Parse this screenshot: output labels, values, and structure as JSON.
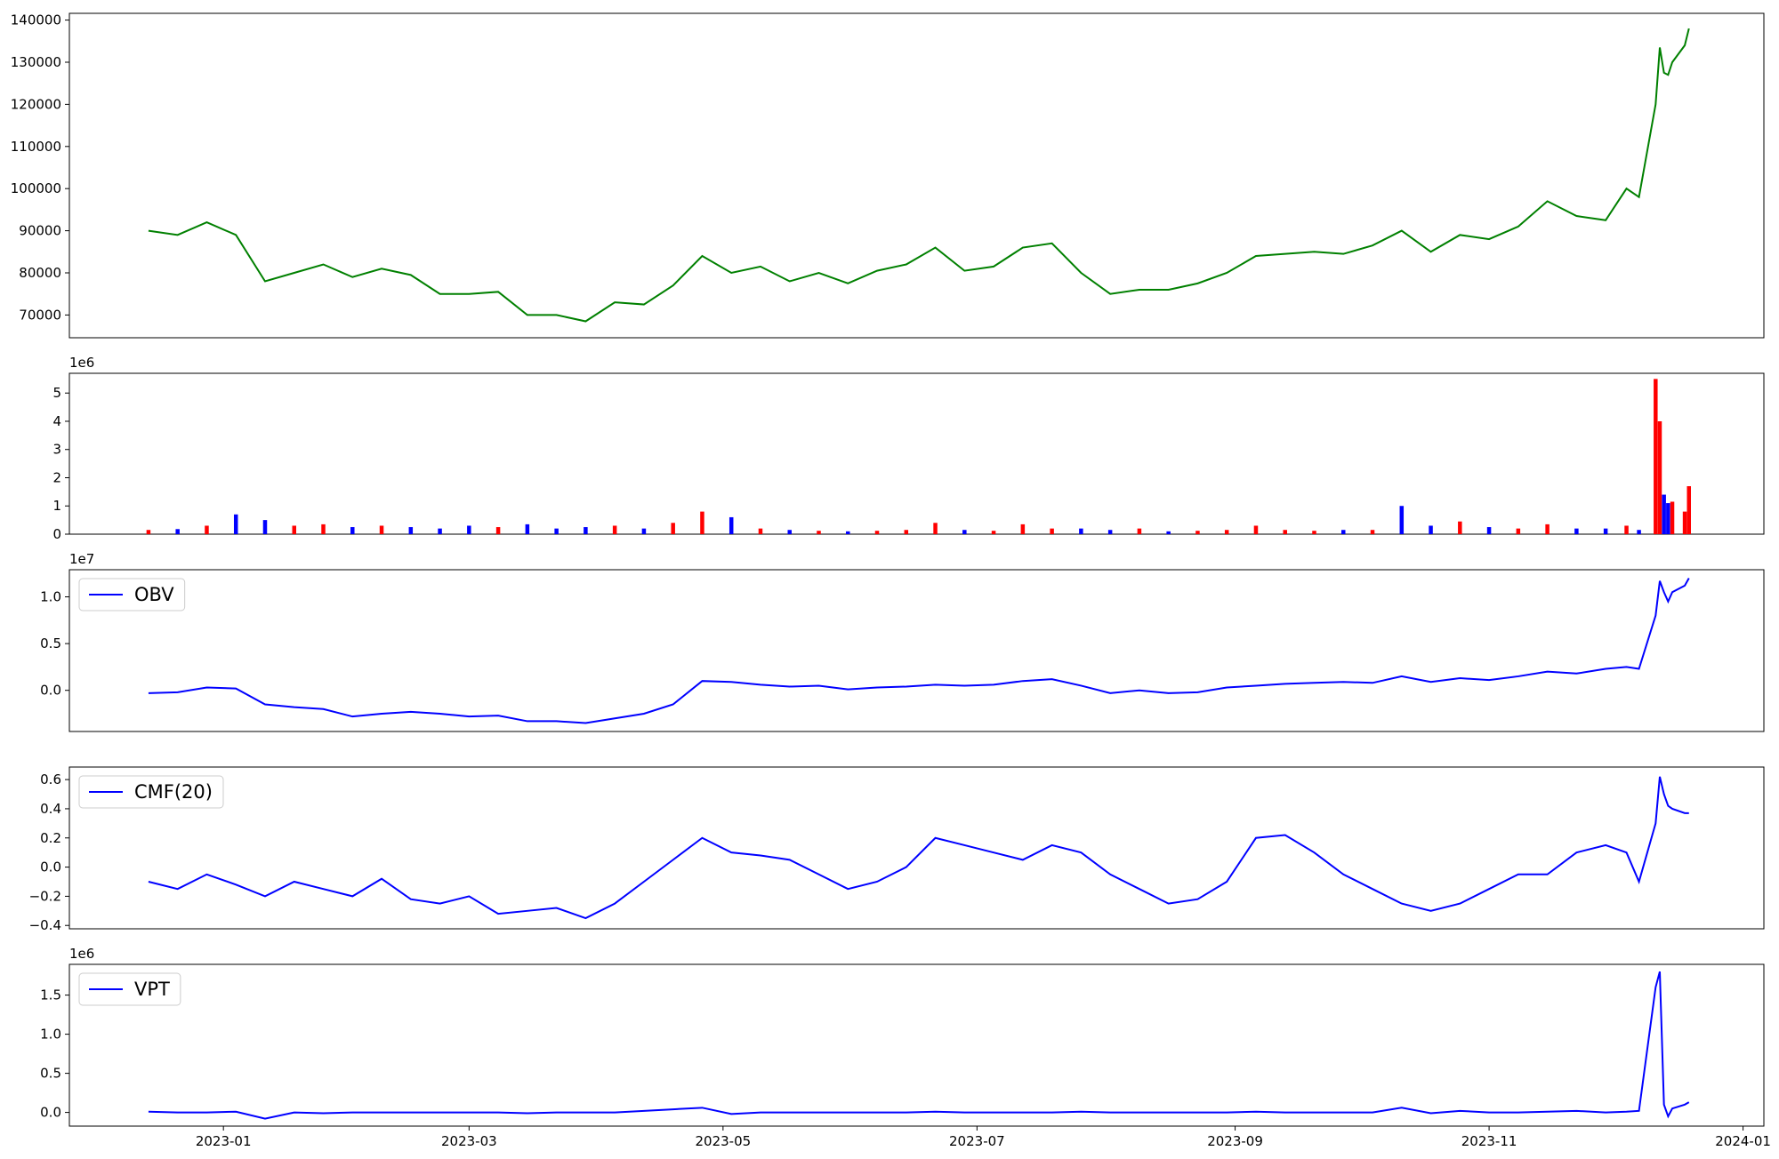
{
  "chart_data": [
    {
      "type": "line",
      "x": [
        "2022-12-14",
        "2022-12-21",
        "2022-12-28",
        "2023-01-04",
        "2023-01-11",
        "2023-01-18",
        "2023-01-25",
        "2023-02-01",
        "2023-02-08",
        "2023-02-15",
        "2023-02-22",
        "2023-03-01",
        "2023-03-08",
        "2023-03-15",
        "2023-03-22",
        "2023-03-29",
        "2023-04-05",
        "2023-04-12",
        "2023-04-19",
        "2023-04-26",
        "2023-05-03",
        "2023-05-10",
        "2023-05-17",
        "2023-05-24",
        "2023-05-31",
        "2023-06-07",
        "2023-06-14",
        "2023-06-21",
        "2023-06-28",
        "2023-07-05",
        "2023-07-12",
        "2023-07-19",
        "2023-07-26",
        "2023-08-02",
        "2023-08-09",
        "2023-08-16",
        "2023-08-23",
        "2023-08-30",
        "2023-09-06",
        "2023-09-13",
        "2023-09-20",
        "2023-09-27",
        "2023-10-04",
        "2023-10-11",
        "2023-10-18",
        "2023-10-25",
        "2023-11-01",
        "2023-11-08",
        "2023-11-15",
        "2023-11-22",
        "2023-11-29",
        "2023-12-04",
        "2023-12-07",
        "2023-12-11",
        "2023-12-12",
        "2023-12-13",
        "2023-12-14",
        "2023-12-15",
        "2023-12-18",
        "2023-12-19"
      ],
      "series": [
        {
          "color": "#008000",
          "values": [
            90000,
            89000,
            92000,
            89000,
            78000,
            80000,
            82000,
            79000,
            81000,
            79500,
            75000,
            75000,
            75500,
            70000,
            70000,
            68500,
            73000,
            72500,
            77000,
            84000,
            80000,
            81500,
            78000,
            80000,
            77500,
            80500,
            82000,
            86000,
            80500,
            81500,
            86000,
            87000,
            80000,
            75000,
            76000,
            76000,
            77500,
            80000,
            84000,
            84500,
            85000,
            84500,
            86500,
            90000,
            85000,
            89000,
            88000,
            91000,
            97000,
            93500,
            92500,
            100000,
            98000,
            120000,
            133500,
            127500,
            127000,
            130000,
            134000,
            138000
          ]
        }
      ],
      "xlim": [
        "2022-11-25",
        "2024-01-06"
      ],
      "ylim": [
        64600,
        141600
      ],
      "yticks": [
        70000,
        80000,
        90000,
        100000,
        110000,
        120000,
        130000,
        140000
      ]
    },
    {
      "type": "bar",
      "x": [
        "2022-12-14",
        "2022-12-21",
        "2022-12-28",
        "2023-01-04",
        "2023-01-11",
        "2023-01-18",
        "2023-01-25",
        "2023-02-01",
        "2023-02-08",
        "2023-02-15",
        "2023-02-22",
        "2023-03-01",
        "2023-03-08",
        "2023-03-15",
        "2023-03-22",
        "2023-03-29",
        "2023-04-05",
        "2023-04-12",
        "2023-04-19",
        "2023-04-26",
        "2023-05-03",
        "2023-05-10",
        "2023-05-17",
        "2023-05-24",
        "2023-05-31",
        "2023-06-07",
        "2023-06-14",
        "2023-06-21",
        "2023-06-28",
        "2023-07-05",
        "2023-07-12",
        "2023-07-19",
        "2023-07-26",
        "2023-08-02",
        "2023-08-09",
        "2023-08-16",
        "2023-08-23",
        "2023-08-30",
        "2023-09-06",
        "2023-09-13",
        "2023-09-20",
        "2023-09-27",
        "2023-10-04",
        "2023-10-11",
        "2023-10-18",
        "2023-10-25",
        "2023-11-01",
        "2023-11-08",
        "2023-11-15",
        "2023-11-22",
        "2023-11-29",
        "2023-12-04",
        "2023-12-07",
        "2023-12-11",
        "2023-12-12",
        "2023-12-13",
        "2023-12-14",
        "2023-12-15",
        "2023-12-18",
        "2023-12-19"
      ],
      "values": [
        150000,
        180000,
        300000,
        700000,
        500000,
        300000,
        350000,
        250000,
        300000,
        250000,
        200000,
        300000,
        250000,
        350000,
        200000,
        250000,
        300000,
        200000,
        400000,
        800000,
        600000,
        200000,
        150000,
        120000,
        100000,
        120000,
        150000,
        400000,
        150000,
        120000,
        350000,
        200000,
        200000,
        150000,
        200000,
        100000,
        120000,
        150000,
        300000,
        150000,
        120000,
        150000,
        150000,
        1000000,
        300000,
        450000,
        250000,
        200000,
        350000,
        200000,
        200000,
        300000,
        150000,
        5500000,
        4000000,
        1400000,
        1100000,
        1150000,
        800000,
        1700000
      ],
      "colors": [
        "red",
        "blue",
        "red",
        "blue",
        "blue",
        "red",
        "red",
        "blue",
        "red",
        "blue",
        "blue",
        "blue",
        "red",
        "blue",
        "blue",
        "blue",
        "red",
        "blue",
        "red",
        "red",
        "blue",
        "red",
        "blue",
        "red",
        "blue",
        "red",
        "red",
        "red",
        "blue",
        "red",
        "red",
        "red",
        "blue",
        "blue",
        "red",
        "blue",
        "red",
        "red",
        "red",
        "red",
        "red",
        "blue",
        "red",
        "blue",
        "blue",
        "red",
        "blue",
        "red",
        "red",
        "blue",
        "blue",
        "red",
        "blue",
        "red",
        "red",
        "blue",
        "blue",
        "red",
        "red",
        "red"
      ],
      "xlim": [
        "2022-11-25",
        "2024-01-06"
      ],
      "ylim": [
        0,
        5700000
      ],
      "y_offset_label": "1e6",
      "yticks": [
        {
          "value": 0,
          "label": "0"
        },
        {
          "value": 1000000,
          "label": "1"
        },
        {
          "value": 2000000,
          "label": "2"
        },
        {
          "value": 3000000,
          "label": "3"
        },
        {
          "value": 4000000,
          "label": "4"
        },
        {
          "value": 5000000,
          "label": "5"
        }
      ]
    },
    {
      "type": "line",
      "x": [
        "2022-12-14",
        "2022-12-21",
        "2022-12-28",
        "2023-01-04",
        "2023-01-11",
        "2023-01-18",
        "2023-01-25",
        "2023-02-01",
        "2023-02-08",
        "2023-02-15",
        "2023-02-22",
        "2023-03-01",
        "2023-03-08",
        "2023-03-15",
        "2023-03-22",
        "2023-03-29",
        "2023-04-05",
        "2023-04-12",
        "2023-04-19",
        "2023-04-26",
        "2023-05-03",
        "2023-05-10",
        "2023-05-17",
        "2023-05-24",
        "2023-05-31",
        "2023-06-07",
        "2023-06-14",
        "2023-06-21",
        "2023-06-28",
        "2023-07-05",
        "2023-07-12",
        "2023-07-19",
        "2023-07-26",
        "2023-08-02",
        "2023-08-09",
        "2023-08-16",
        "2023-08-23",
        "2023-08-30",
        "2023-09-06",
        "2023-09-13",
        "2023-09-20",
        "2023-09-27",
        "2023-10-04",
        "2023-10-11",
        "2023-10-18",
        "2023-10-25",
        "2023-11-01",
        "2023-11-08",
        "2023-11-15",
        "2023-11-22",
        "2023-11-29",
        "2023-12-04",
        "2023-12-07",
        "2023-12-11",
        "2023-12-12",
        "2023-12-13",
        "2023-12-14",
        "2023-12-15",
        "2023-12-18",
        "2023-12-19"
      ],
      "series": [
        {
          "name": "OBV",
          "color": "#0000ff",
          "values": [
            -300000,
            -200000,
            300000,
            200000,
            -1500000,
            -1800000,
            -2000000,
            -2800000,
            -2500000,
            -2300000,
            -2500000,
            -2800000,
            -2700000,
            -3300000,
            -3300000,
            -3500000,
            -3000000,
            -2500000,
            -1500000,
            1000000,
            900000,
            600000,
            400000,
            500000,
            100000,
            300000,
            400000,
            600000,
            500000,
            600000,
            1000000,
            1200000,
            500000,
            -300000,
            0,
            -300000,
            -200000,
            300000,
            500000,
            700000,
            800000,
            900000,
            800000,
            1500000,
            900000,
            1300000,
            1100000,
            1500000,
            2000000,
            1800000,
            2300000,
            2500000,
            2300000,
            8000000,
            11700000,
            10500000,
            9500000,
            10500000,
            11200000,
            12000000
          ]
        }
      ],
      "legend": "upper left",
      "xlim": [
        "2022-11-25",
        "2024-01-06"
      ],
      "ylim": [
        -4400000,
        12900000
      ],
      "y_offset_label": "1e7",
      "yticks": [
        {
          "value": 0,
          "label": "0.0"
        },
        {
          "value": 5000000,
          "label": "0.5"
        },
        {
          "value": 10000000,
          "label": "1.0"
        }
      ]
    },
    {
      "type": "line",
      "x": [
        "2022-12-14",
        "2022-12-21",
        "2022-12-28",
        "2023-01-04",
        "2023-01-11",
        "2023-01-18",
        "2023-01-25",
        "2023-02-01",
        "2023-02-08",
        "2023-02-15",
        "2023-02-22",
        "2023-03-01",
        "2023-03-08",
        "2023-03-15",
        "2023-03-22",
        "2023-03-29",
        "2023-04-05",
        "2023-04-12",
        "2023-04-19",
        "2023-04-26",
        "2023-05-03",
        "2023-05-10",
        "2023-05-17",
        "2023-05-24",
        "2023-05-31",
        "2023-06-07",
        "2023-06-14",
        "2023-06-21",
        "2023-06-28",
        "2023-07-05",
        "2023-07-12",
        "2023-07-19",
        "2023-07-26",
        "2023-08-02",
        "2023-08-09",
        "2023-08-16",
        "2023-08-23",
        "2023-08-30",
        "2023-09-06",
        "2023-09-13",
        "2023-09-20",
        "2023-09-27",
        "2023-10-04",
        "2023-10-11",
        "2023-10-18",
        "2023-10-25",
        "2023-11-01",
        "2023-11-08",
        "2023-11-15",
        "2023-11-22",
        "2023-11-29",
        "2023-12-04",
        "2023-12-07",
        "2023-12-11",
        "2023-12-12",
        "2023-12-13",
        "2023-12-14",
        "2023-12-15",
        "2023-12-18",
        "2023-12-19"
      ],
      "series": [
        {
          "name": "CMF(20)",
          "color": "#0000ff",
          "values": [
            -0.1,
            -0.15,
            -0.05,
            -0.12,
            -0.2,
            -0.1,
            -0.15,
            -0.2,
            -0.08,
            -0.22,
            -0.25,
            -0.2,
            -0.32,
            -0.3,
            -0.28,
            -0.35,
            -0.25,
            -0.1,
            0.05,
            0.2,
            0.1,
            0.08,
            0.05,
            -0.05,
            -0.15,
            -0.1,
            0.0,
            0.2,
            0.15,
            0.1,
            0.05,
            0.15,
            0.1,
            -0.05,
            -0.15,
            -0.25,
            -0.22,
            -0.1,
            0.2,
            0.22,
            0.1,
            -0.05,
            -0.15,
            -0.25,
            -0.3,
            -0.25,
            -0.15,
            -0.05,
            -0.05,
            0.1,
            0.15,
            0.1,
            -0.1,
            0.3,
            0.62,
            0.5,
            0.42,
            0.4,
            0.37,
            0.37
          ]
        }
      ],
      "legend": "upper left",
      "xlim": [
        "2022-11-25",
        "2024-01-06"
      ],
      "ylim": [
        -0.423,
        0.686
      ],
      "yticks": [
        {
          "value": -0.4,
          "label": "−0.4"
        },
        {
          "value": -0.2,
          "label": "−0.2"
        },
        {
          "value": 0,
          "label": "0.0"
        },
        0.2,
        0.4,
        0.6
      ]
    },
    {
      "type": "line",
      "x": [
        "2022-12-14",
        "2022-12-21",
        "2022-12-28",
        "2023-01-04",
        "2023-01-11",
        "2023-01-18",
        "2023-01-25",
        "2023-02-01",
        "2023-02-08",
        "2023-02-15",
        "2023-02-22",
        "2023-03-01",
        "2023-03-08",
        "2023-03-15",
        "2023-03-22",
        "2023-03-29",
        "2023-04-05",
        "2023-04-12",
        "2023-04-19",
        "2023-04-26",
        "2023-05-03",
        "2023-05-10",
        "2023-05-17",
        "2023-05-24",
        "2023-05-31",
        "2023-06-07",
        "2023-06-14",
        "2023-06-21",
        "2023-06-28",
        "2023-07-05",
        "2023-07-12",
        "2023-07-19",
        "2023-07-26",
        "2023-08-02",
        "2023-08-09",
        "2023-08-16",
        "2023-08-23",
        "2023-08-30",
        "2023-09-06",
        "2023-09-13",
        "2023-09-20",
        "2023-09-27",
        "2023-10-04",
        "2023-10-11",
        "2023-10-18",
        "2023-10-25",
        "2023-11-01",
        "2023-11-08",
        "2023-11-15",
        "2023-11-22",
        "2023-11-29",
        "2023-12-04",
        "2023-12-07",
        "2023-12-11",
        "2023-12-12",
        "2023-12-13",
        "2023-12-14",
        "2023-12-15",
        "2023-12-18",
        "2023-12-19"
      ],
      "series": [
        {
          "name": "VPT",
          "color": "#0000ff",
          "values": [
            10000,
            0,
            0,
            10000,
            -80000,
            0,
            -10000,
            0,
            0,
            0,
            0,
            0,
            0,
            -10000,
            0,
            0,
            0,
            20000,
            40000,
            60000,
            -20000,
            0,
            0,
            0,
            0,
            0,
            0,
            10000,
            0,
            0,
            0,
            0,
            10000,
            0,
            0,
            0,
            0,
            0,
            10000,
            0,
            0,
            0,
            0,
            60000,
            -10000,
            20000,
            0,
            0,
            10000,
            20000,
            0,
            10000,
            20000,
            1600000,
            1800000,
            100000,
            -50000,
            50000,
            100000,
            130000
          ]
        }
      ],
      "legend": "upper left",
      "xlim": [
        "2022-11-25",
        "2024-01-06"
      ],
      "ylim": [
        -175000,
        1893000
      ],
      "y_offset_label": "1e6",
      "yticks": [
        {
          "value": 0,
          "label": "0.0"
        },
        {
          "value": 500000,
          "label": "0.5"
        },
        {
          "value": 1000000,
          "label": "1.0"
        },
        {
          "value": 1500000,
          "label": "1.5"
        }
      ],
      "xticks": [
        {
          "value": "2023-01-01",
          "label": "2023-01"
        },
        {
          "value": "2023-03-01",
          "label": "2023-03"
        },
        {
          "value": "2023-05-01",
          "label": "2023-05"
        },
        {
          "value": "2023-07-01",
          "label": "2023-07"
        },
        {
          "value": "2023-09-01",
          "label": "2023-09"
        },
        {
          "value": "2023-11-01",
          "label": "2023-11"
        },
        {
          "value": "2024-01-01",
          "label": "2024-01"
        }
      ]
    }
  ]
}
